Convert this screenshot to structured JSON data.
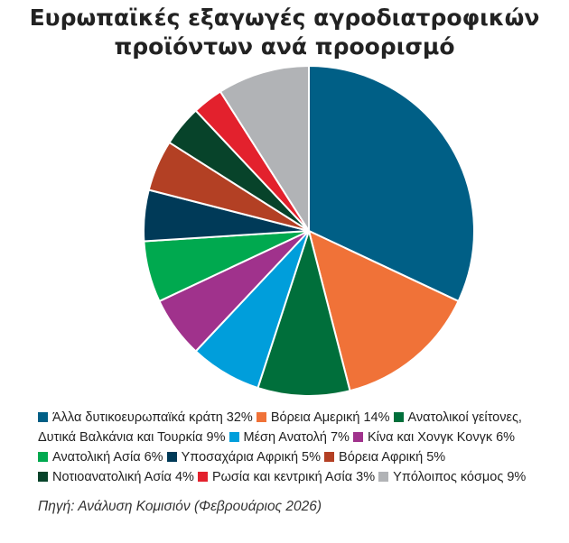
{
  "title_line1": "Ευρωπαϊκές εξαγωγές αγροδιατροφικών",
  "title_line2": "προϊόντων ανά προορισμό",
  "source": "Πηγή: Ανάλυση Κομισιόν (Φεβρουάριος 2026)",
  "chart_data": {
    "type": "pie",
    "title": "Ευρωπαϊκές εξαγωγές αγροδιατροφικών προϊόντων ανά προορισμό",
    "unit": "%",
    "slices": [
      {
        "label": "Άλλα δυτικοευρωπαϊκά κράτη 32%",
        "value": 32,
        "color": "#005f86"
      },
      {
        "label": "Βόρεια Αμερική 14%",
        "value": 14,
        "color": "#f07238"
      },
      {
        "label": "Ανατολικοί γείτονες, Δυτικά Βαλκάνια και Τουρκία 9%",
        "value": 9,
        "color": "#006f3b"
      },
      {
        "label": "Μέση Ανατολή 7%",
        "value": 7,
        "color": "#009edb"
      },
      {
        "label": "Κίνα και Χονγκ Κονγκ 6%",
        "value": 6,
        "color": "#a0328c"
      },
      {
        "label": "Ανατολική Ασία 6%",
        "value": 6,
        "color": "#00a94f"
      },
      {
        "label": "Υποσαχάρια Αφρική 5%",
        "value": 5,
        "color": "#003a58"
      },
      {
        "label": "Βόρεια Αφρική 5%",
        "value": 5,
        "color": "#b34024"
      },
      {
        "label": "Νοτιοανατολική Ασία 4%",
        "value": 4,
        "color": "#07432a"
      },
      {
        "label": "Ρωσία και κεντρική Ασία 3%",
        "value": 3,
        "color": "#e3212d"
      },
      {
        "label": "Υπόλοιπος κόσμος 9%",
        "value": 9,
        "color": "#b1b3b6"
      }
    ],
    "legend_position": "bottom"
  }
}
